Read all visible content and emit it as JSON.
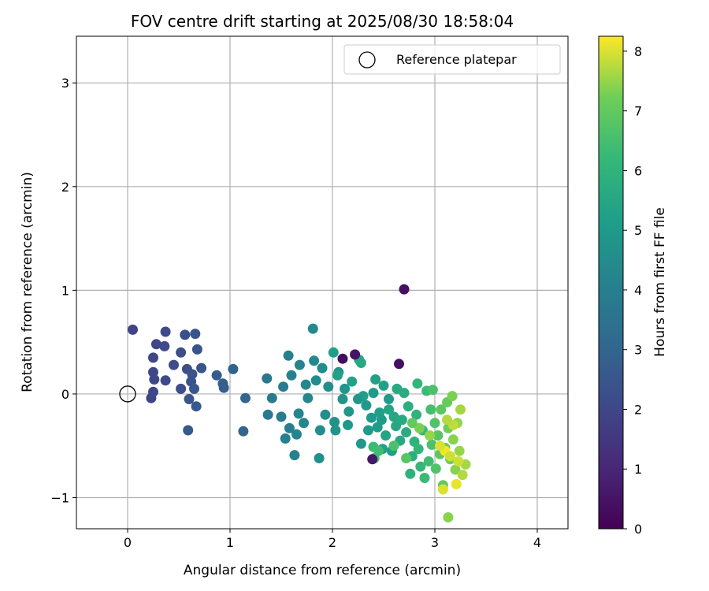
{
  "chart_data": {
    "type": "scatter",
    "title": "FOV centre drift starting at 2025/08/30 18:58:04",
    "xlabel": "Angular distance from reference (arcmin)",
    "ylabel": "Rotation from reference (arcmin)",
    "xlim": [
      -0.5,
      4.3
    ],
    "ylim": [
      -1.3,
      3.45
    ],
    "xticks": [
      "0",
      "1",
      "2",
      "3",
      "4"
    ],
    "yticks": [
      "−1",
      "0",
      "1",
      "2",
      "3"
    ],
    "grid": true,
    "legend": {
      "position": "top-right",
      "entries": [
        "Reference platepar"
      ]
    },
    "reference_point": [
      0,
      0
    ],
    "colorbar": {
      "label": "Hours from first FF file",
      "range": [
        0,
        8.25
      ],
      "ticks": [
        "0",
        "1",
        "2",
        "3",
        "4",
        "5",
        "6",
        "7",
        "8"
      ],
      "colormap": "viridis"
    },
    "points": [
      [
        0.05,
        0.62,
        1.9
      ],
      [
        0.28,
        0.48,
        2.0
      ],
      [
        0.37,
        0.6,
        2.1
      ],
      [
        0.25,
        0.35,
        2.0
      ],
      [
        0.36,
        0.46,
        2.1
      ],
      [
        0.56,
        0.57,
        2.3
      ],
      [
        0.66,
        0.58,
        2.4
      ],
      [
        0.52,
        0.4,
        2.2
      ],
      [
        0.68,
        0.43,
        2.4
      ],
      [
        0.45,
        0.28,
        2.2
      ],
      [
        0.25,
        0.21,
        2.0
      ],
      [
        0.37,
        0.13,
        2.1
      ],
      [
        0.26,
        0.14,
        2.0
      ],
      [
        0.52,
        0.05,
        2.2
      ],
      [
        0.58,
        0.24,
        2.3
      ],
      [
        0.63,
        0.19,
        2.4
      ],
      [
        0.62,
        0.12,
        2.4
      ],
      [
        0.72,
        0.25,
        2.5
      ],
      [
        0.65,
        0.05,
        2.5
      ],
      [
        0.6,
        -0.05,
        2.5
      ],
      [
        0.67,
        -0.12,
        2.6
      ],
      [
        0.59,
        -0.35,
        2.6
      ],
      [
        0.23,
        -0.04,
        1.9
      ],
      [
        0.25,
        0.02,
        2.0
      ],
      [
        0.87,
        0.18,
        2.7
      ],
      [
        0.93,
        0.1,
        2.8
      ],
      [
        1.03,
        0.24,
        2.9
      ],
      [
        0.94,
        0.06,
        2.8
      ],
      [
        1.15,
        -0.04,
        3.0
      ],
      [
        1.13,
        -0.36,
        3.0
      ],
      [
        1.36,
        0.15,
        3.7
      ],
      [
        1.41,
        -0.04,
        3.8
      ],
      [
        1.37,
        -0.2,
        3.8
      ],
      [
        1.5,
        -0.22,
        3.9
      ],
      [
        1.52,
        0.07,
        3.9
      ],
      [
        1.57,
        0.37,
        4.0
      ],
      [
        1.58,
        -0.33,
        4.0
      ],
      [
        1.54,
        -0.43,
        4.1
      ],
      [
        1.63,
        -0.59,
        4.1
      ],
      [
        1.6,
        0.18,
        4.1
      ],
      [
        1.65,
        -0.39,
        4.2
      ],
      [
        1.68,
        0.28,
        4.2
      ],
      [
        1.67,
        -0.19,
        4.2
      ],
      [
        1.72,
        -0.28,
        4.3
      ],
      [
        1.74,
        0.09,
        4.3
      ],
      [
        1.76,
        -0.04,
        4.3
      ],
      [
        1.81,
        0.63,
        4.4
      ],
      [
        1.82,
        0.32,
        4.4
      ],
      [
        1.84,
        0.13,
        4.5
      ],
      [
        1.88,
        -0.35,
        4.5
      ],
      [
        1.87,
        -0.62,
        4.6
      ],
      [
        1.9,
        0.25,
        4.5
      ],
      [
        1.93,
        -0.2,
        4.6
      ],
      [
        1.96,
        0.07,
        4.6
      ],
      [
        2.02,
        -0.27,
        4.7
      ],
      [
        2.03,
        -0.35,
        4.7
      ],
      [
        2.06,
        0.21,
        4.8
      ],
      [
        2.1,
        -0.05,
        4.8
      ],
      [
        2.15,
        -0.3,
        4.9
      ],
      [
        2.16,
        -0.17,
        4.9
      ],
      [
        2.01,
        0.4,
        5.2
      ],
      [
        2.05,
        0.18,
        5.3
      ],
      [
        2.26,
        0.33,
        5.5
      ],
      [
        2.28,
        0.3,
        5.6
      ],
      [
        2.28,
        -0.48,
        4.9
      ],
      [
        2.33,
        -0.11,
        5.0
      ],
      [
        2.38,
        -0.23,
        5.0
      ],
      [
        2.4,
        0.01,
        5.1
      ],
      [
        2.42,
        0.14,
        5.3
      ],
      [
        2.44,
        -0.32,
        5.1
      ],
      [
        2.46,
        -0.18,
        5.2
      ],
      [
        2.49,
        -0.53,
        5.3
      ],
      [
        2.5,
        0.08,
        5.3
      ],
      [
        2.52,
        -0.4,
        5.4
      ],
      [
        2.55,
        -0.15,
        5.4
      ],
      [
        2.58,
        -0.55,
        5.2
      ],
      [
        2.6,
        -0.22,
        5.5
      ],
      [
        2.62,
        -0.31,
        5.5
      ],
      [
        2.63,
        0.05,
        5.6
      ],
      [
        2.66,
        -0.45,
        5.6
      ],
      [
        2.68,
        -0.25,
        5.6
      ],
      [
        2.7,
        0.01,
        5.7
      ],
      [
        2.72,
        -0.37,
        5.7
      ],
      [
        2.74,
        -0.12,
        5.8
      ],
      [
        2.76,
        -0.77,
        5.9
      ],
      [
        2.78,
        -0.6,
        5.8
      ],
      [
        2.8,
        -0.46,
        6.0
      ],
      [
        2.82,
        -0.2,
        6.0
      ],
      [
        2.83,
        0.1,
        6.1
      ],
      [
        2.84,
        -0.53,
        6.1
      ],
      [
        2.86,
        -0.7,
        6.2
      ],
      [
        2.88,
        -0.35,
        6.2
      ],
      [
        2.9,
        -0.81,
        6.3
      ],
      [
        2.92,
        0.03,
        6.3
      ],
      [
        2.94,
        -0.65,
        6.4
      ],
      [
        2.4,
        -0.51,
        6.3
      ],
      [
        2.41,
        -0.62,
        6.5
      ],
      [
        2.45,
        -0.55,
        6.4
      ],
      [
        2.3,
        -0.02,
        5.2
      ],
      [
        2.19,
        0.12,
        5.3
      ],
      [
        2.96,
        -0.15,
        6.5
      ],
      [
        2.97,
        -0.49,
        6.6
      ],
      [
        2.98,
        0.04,
        6.6
      ],
      [
        3.0,
        -0.28,
        6.7
      ],
      [
        3.01,
        -0.72,
        6.7
      ],
      [
        3.03,
        -0.4,
        6.8
      ],
      [
        3.05,
        -0.58,
        6.9
      ],
      [
        3.06,
        -0.15,
        6.9
      ],
      [
        3.08,
        -0.88,
        7.0
      ],
      [
        3.1,
        -0.52,
        7.1
      ],
      [
        3.12,
        -0.08,
        7.1
      ],
      [
        3.13,
        -0.33,
        7.2
      ],
      [
        3.15,
        -0.63,
        7.2
      ],
      [
        3.17,
        -0.02,
        7.3
      ],
      [
        3.18,
        -0.44,
        7.4
      ],
      [
        3.2,
        -0.73,
        7.4
      ],
      [
        3.22,
        -0.28,
        7.5
      ],
      [
        3.24,
        -0.55,
        7.5
      ],
      [
        3.25,
        -0.15,
        7.6
      ],
      [
        3.27,
        -0.78,
        7.7
      ],
      [
        3.3,
        -0.68,
        7.6
      ],
      [
        3.13,
        -1.19,
        7.4
      ],
      [
        3.08,
        -0.92,
        8.0
      ],
      [
        3.21,
        -0.87,
        8.1
      ],
      [
        3.1,
        -0.55,
        8.2
      ],
      [
        3.05,
        -0.5,
        8.0
      ],
      [
        3.15,
        -0.6,
        7.9
      ],
      [
        3.18,
        -0.3,
        7.8
      ],
      [
        3.12,
        -0.25,
        7.7
      ],
      [
        3.23,
        -0.65,
        7.9
      ],
      [
        2.95,
        -0.4,
        7.5
      ],
      [
        2.85,
        -0.33,
        7.3
      ],
      [
        2.78,
        -0.28,
        7.0
      ],
      [
        2.6,
        -0.5,
        6.6
      ],
      [
        2.72,
        -0.62,
        6.8
      ],
      [
        2.1,
        0.34,
        0.3
      ],
      [
        2.22,
        0.38,
        0.5
      ],
      [
        2.65,
        0.29,
        0.4
      ],
      [
        2.7,
        1.01,
        0.4
      ],
      [
        2.39,
        -0.63,
        0.6
      ],
      [
        2.55,
        -0.05,
        5.0
      ],
      [
        2.48,
        -0.25,
        5.1
      ],
      [
        2.35,
        -0.35,
        5.0
      ],
      [
        2.25,
        -0.05,
        4.9
      ],
      [
        2.12,
        0.05,
        4.8
      ]
    ]
  }
}
